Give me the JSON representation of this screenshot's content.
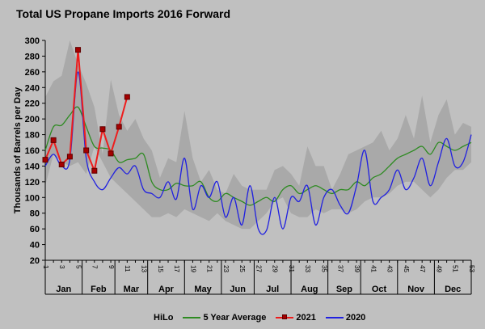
{
  "chart_data": {
    "type": "line",
    "title": "Total US Propane Imports 2016 Forward",
    "ylabel": "Thousands of Barrels per Day",
    "xlabel": "",
    "ylim": [
      20,
      300
    ],
    "yticks": [
      20,
      40,
      60,
      80,
      100,
      120,
      140,
      160,
      180,
      200,
      220,
      240,
      260,
      280,
      300
    ],
    "weeks": 53,
    "week_tick_labels": [
      "1",
      "3",
      "5",
      "7",
      "9",
      "11",
      "13",
      "15",
      "17",
      "19",
      "21",
      "23",
      "25",
      "27",
      "29",
      "31",
      "33",
      "35",
      "37",
      "39",
      "41",
      "43",
      "45",
      "47",
      "49",
      "51",
      "53"
    ],
    "months": [
      "Jan",
      "Feb",
      "Mar",
      "Apr",
      "May",
      "Jun",
      "Jul",
      "Aug",
      "Sep",
      "Oct",
      "Nov",
      "Dec"
    ],
    "month_week_bounds": [
      1,
      5.5,
      9.5,
      13.5,
      18,
      22.5,
      26.5,
      31,
      35.5,
      39.5,
      44,
      48.5,
      53
    ],
    "grid": false,
    "legend_position": "bottom",
    "colors": {
      "background": "#c0c0c0",
      "hilo": "#a9a9a9",
      "avg": "#2e8b22",
      "y2021": "#ee1c1c",
      "y2020": "#2020e0"
    },
    "series": [
      {
        "name": "HiLo",
        "kind": "band",
        "high": [
          228,
          248,
          255,
          300,
          270,
          245,
          215,
          155,
          250,
          205,
          185,
          200,
          175,
          160,
          125,
          150,
          145,
          210,
          150,
          120,
          135,
          110,
          105,
          130,
          115,
          110,
          110,
          110,
          135,
          140,
          130,
          115,
          165,
          140,
          140,
          110,
          130,
          155,
          160,
          165,
          170,
          185,
          160,
          175,
          205,
          175,
          230,
          170,
          205,
          225,
          180,
          195,
          190
        ],
        "low": [
          115,
          155,
          145,
          140,
          145,
          130,
          165,
          145,
          125,
          115,
          105,
          95,
          85,
          75,
          75,
          80,
          75,
          85,
          80,
          75,
          70,
          80,
          70,
          65,
          60,
          60,
          70,
          80,
          95,
          100,
          80,
          75,
          75,
          85,
          80,
          85,
          85,
          80,
          85,
          95,
          100,
          100,
          105,
          115,
          120,
          120,
          110,
          100,
          110,
          125,
          135,
          135,
          145
        ]
      },
      {
        "name": "5 Year Average",
        "values": [
          160,
          190,
          192,
          205,
          215,
          190,
          165,
          163,
          160,
          145,
          148,
          150,
          155,
          120,
          110,
          110,
          118,
          115,
          115,
          120,
          100,
          95,
          105,
          100,
          95,
          90,
          95,
          100,
          95,
          110,
          115,
          105,
          110,
          115,
          110,
          105,
          110,
          110,
          120,
          115,
          125,
          130,
          140,
          150,
          155,
          160,
          165,
          155,
          170,
          165,
          160,
          165,
          170
        ]
      },
      {
        "name": "2021",
        "values": [
          148,
          173,
          142,
          152,
          288,
          160,
          134,
          187,
          156,
          190,
          228
        ]
      },
      {
        "name": "2020",
        "values": [
          140,
          155,
          140,
          148,
          260,
          150,
          120,
          110,
          125,
          138,
          130,
          140,
          110,
          105,
          100,
          120,
          98,
          150,
          85,
          115,
          100,
          120,
          75,
          100,
          65,
          115,
          60,
          58,
          100,
          60,
          100,
          95,
          115,
          65,
          100,
          110,
          90,
          80,
          115,
          160,
          95,
          100,
          110,
          135,
          110,
          125,
          150,
          115,
          145,
          175,
          140,
          145,
          180
        ]
      }
    ]
  }
}
